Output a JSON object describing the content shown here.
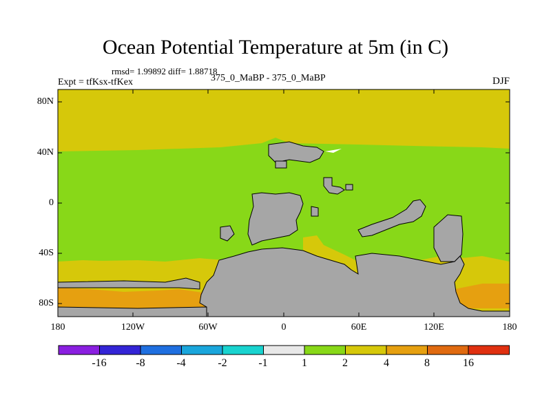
{
  "title": "Ocean Potential Temperature at 5m (in C)",
  "stats": "rmsd= 1.99892 diff= 1.88718",
  "experiment": "Expt = tfKsx-tfKex",
  "subtitle": "375_0_MaBP - 375_0_MaBP",
  "season": "DJF",
  "lat_labels": [
    "80N",
    "40N",
    "0",
    "40S",
    "80S"
  ],
  "lon_labels": [
    "180",
    "120W",
    "60W",
    "0",
    "60E",
    "120E",
    "180"
  ],
  "colorbar": {
    "labels": [
      "-16",
      "-8",
      "-4",
      "-2",
      "-1",
      "1",
      "2",
      "4",
      "8",
      "16"
    ],
    "colors": [
      "#8a1fe0",
      "#3324d6",
      "#1f6fe0",
      "#1aa6dc",
      "#19d3cf",
      "#e8e8e8",
      "#88d818",
      "#d6c80a",
      "#e6a010",
      "#e06a10",
      "#e03010"
    ]
  },
  "colors": {
    "land": "#a6a6a6",
    "band_2_4": "#d6c80a",
    "band_1_2": "#88d818",
    "band_4_8": "#e6a010"
  }
}
